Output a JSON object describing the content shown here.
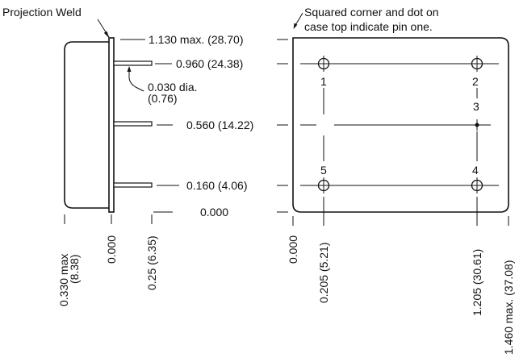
{
  "annotations": {
    "projection_weld": "Projection Weld",
    "pin_one_note_line1": "Squared corner and dot on",
    "pin_one_note_line2": "case top indicate pin one.",
    "pin_diameter_line1": "0.030 dia.",
    "pin_diameter_line2": "(0.76)"
  },
  "side_view": {
    "vertical_dims": [
      {
        "id": "dim-1130",
        "label": "1.130 max. (28.70)"
      },
      {
        "id": "dim-0960",
        "label": "0.960 (24.38)"
      },
      {
        "id": "dim-0560",
        "label": "0.560 (14.22)"
      },
      {
        "id": "dim-0160",
        "label": "0.160 (4.06)"
      },
      {
        "id": "dim-0000",
        "label": "0.000"
      }
    ],
    "horizontal_dims": [
      {
        "id": "dim-0330",
        "line1": "0.330 max",
        "line2": "(8.38)"
      },
      {
        "id": "dim-h-0000",
        "line1": "0.000"
      },
      {
        "id": "dim-025",
        "line1": "0.25 (6.35)"
      }
    ]
  },
  "top_view": {
    "pins": [
      "1",
      "2",
      "3",
      "4",
      "5"
    ],
    "horizontal_dims": [
      {
        "id": "dim-t-0000",
        "label": "0.000"
      },
      {
        "id": "dim-0205",
        "label": "0.205 (5.21)"
      },
      {
        "id": "dim-1205",
        "label": "1.205 (30.61)"
      },
      {
        "id": "dim-1460",
        "label": "1.460 max. (37.08)"
      }
    ]
  }
}
